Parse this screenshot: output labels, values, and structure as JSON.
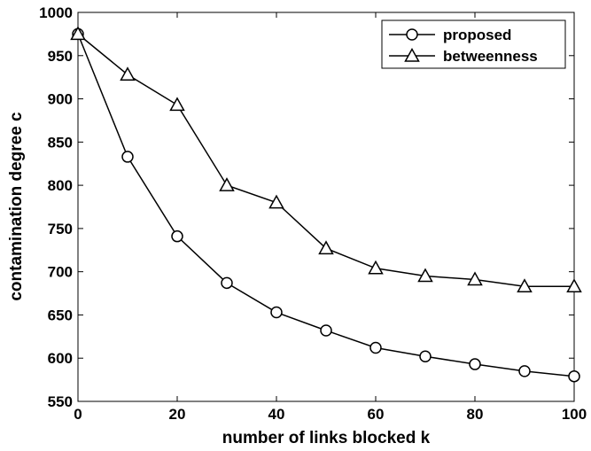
{
  "chart_data": {
    "type": "line",
    "xlabel": "number of links blocked  k",
    "ylabel": "contamination degree  c",
    "xlim": [
      0,
      100
    ],
    "ylim": [
      550,
      1000
    ],
    "xticks": [
      "0",
      "20",
      "40",
      "60",
      "80",
      "100"
    ],
    "yticks": [
      "550",
      "600",
      "650",
      "700",
      "750",
      "800",
      "850",
      "900",
      "950",
      "1000"
    ],
    "grid": false,
    "legend_position": "top-right",
    "x": [
      0,
      10,
      20,
      30,
      40,
      50,
      60,
      70,
      80,
      90,
      100
    ],
    "series": [
      {
        "name": "proposed",
        "marker": "circle",
        "values": [
          975,
          833,
          741,
          687,
          653,
          632,
          612,
          602,
          593,
          585,
          579
        ]
      },
      {
        "name": "betweenness",
        "marker": "triangle",
        "values": [
          975,
          928,
          893,
          800,
          780,
          727,
          704,
          695,
          691,
          683,
          683
        ]
      }
    ]
  }
}
